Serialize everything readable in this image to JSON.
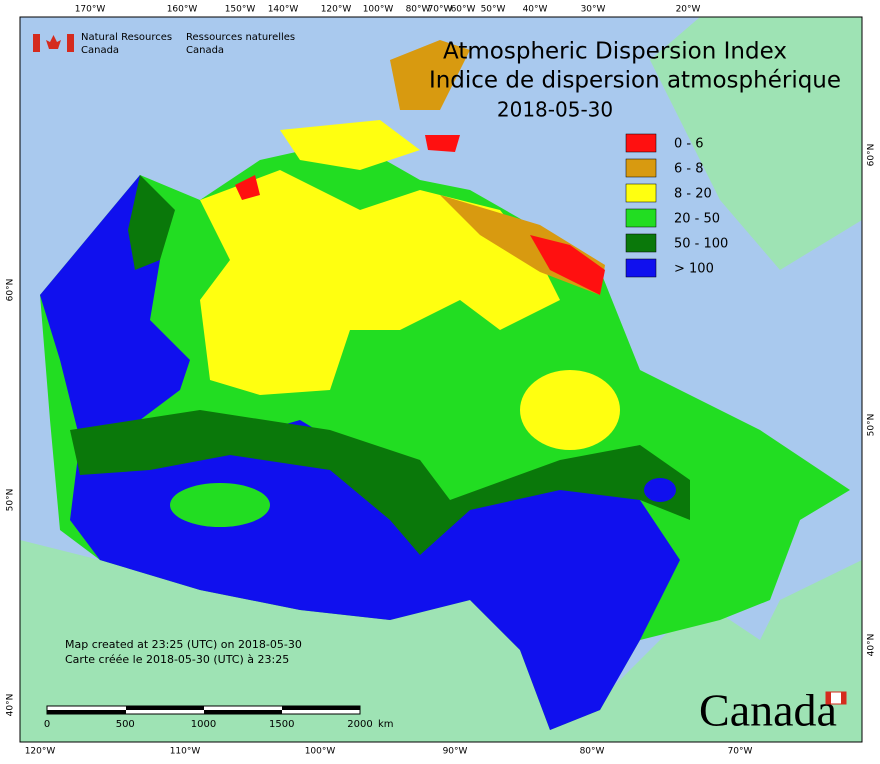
{
  "header": {
    "agency_en": [
      "Natural Resources",
      "Canada"
    ],
    "agency_fr": [
      "Ressources naturelles",
      "Canada"
    ]
  },
  "title": {
    "en": "Atmospheric Dispersion Index",
    "fr": "Indice de dispersion atmosphérique",
    "date": "2018-05-30"
  },
  "legend": [
    {
      "label": "0 - 6",
      "color": "#ff1010"
    },
    {
      "label": "6 - 8",
      "color": "#d89a10"
    },
    {
      "label": "8 - 20",
      "color": "#ffff10"
    },
    {
      "label": "20 - 50",
      "color": "#22dd22"
    },
    {
      "label": "50 - 100",
      "color": "#0a780a"
    },
    {
      "label": "> 100",
      "color": "#1010ee"
    }
  ],
  "graticule": {
    "top": [
      "170°W",
      "160°W",
      "150°W",
      "140°W",
      "120°W",
      "100°W",
      "80°W",
      "70°W",
      "60°W",
      "50°W",
      "40°W",
      "30°W",
      "20°W"
    ],
    "bottom": [
      "120°W",
      "110°W",
      "100°W",
      "90°W",
      "80°W",
      "70°W"
    ],
    "left": [
      "60°N",
      "50°N",
      "40°N"
    ],
    "right": [
      "60°N",
      "50°N",
      "40°N"
    ]
  },
  "credits": [
    "Map created at 23:25 (UTC) on 2018-05-30",
    "Carte créée le 2018-05-30 (UTC) à 23:25"
  ],
  "scale_bar": {
    "labels": [
      "0",
      "500",
      "1000",
      "1500",
      "2000"
    ],
    "unit": "km"
  },
  "wordmark": "Canada"
}
